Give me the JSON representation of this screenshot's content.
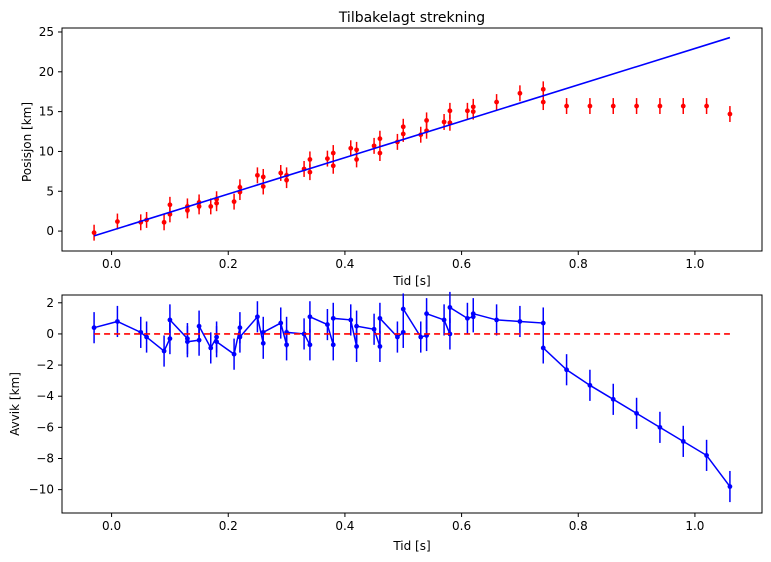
{
  "chart_data": [
    {
      "type": "scatter",
      "title": "Tilbakelagt strekning",
      "xlabel": "Tid [s]",
      "ylabel": "Posisjon [km]",
      "xlim": [
        -0.085,
        1.115
      ],
      "ylim": [
        -2.5,
        25.5
      ],
      "xticks": [
        0.0,
        0.2,
        0.4,
        0.6,
        0.8,
        1.0
      ],
      "xtick_labels": [
        "0.0",
        "0.2",
        "0.4",
        "0.6",
        "0.8",
        "1.0"
      ],
      "yticks": [
        0,
        5,
        10,
        15,
        20,
        25
      ],
      "ytick_labels": [
        "0",
        "5",
        "10",
        "15",
        "20",
        "25"
      ],
      "grid": false,
      "colors": {
        "points": "#ff0000",
        "fit": "#0000ff"
      },
      "series": [
        {
          "kind": "errorbar",
          "color": "#ff0000",
          "yerr": 1.0,
          "x": [
            -0.03,
            0.01,
            0.05,
            0.06,
            0.09,
            0.1,
            0.1,
            0.13,
            0.13,
            0.15,
            0.15,
            0.17,
            0.18,
            0.18,
            0.21,
            0.22,
            0.22,
            0.25,
            0.26,
            0.26,
            0.29,
            0.3,
            0.3,
            0.33,
            0.34,
            0.34,
            0.37,
            0.38,
            0.38,
            0.41,
            0.42,
            0.42,
            0.45,
            0.46,
            0.46,
            0.49,
            0.5,
            0.5,
            0.53,
            0.54,
            0.54,
            0.57,
            0.58,
            0.58,
            0.61,
            0.62,
            0.62,
            0.66,
            0.7,
            0.74,
            0.74,
            0.78,
            0.82,
            0.86,
            0.9,
            0.94,
            0.98,
            1.02,
            1.06
          ],
          "y": [
            -0.2,
            1.2,
            1.1,
            1.4,
            1.1,
            2.1,
            3.3,
            2.6,
            3.1,
            3.1,
            3.6,
            3.1,
            3.5,
            4.0,
            3.7,
            4.9,
            5.5,
            7.0,
            5.6,
            6.8,
            7.3,
            6.4,
            7.0,
            7.8,
            7.4,
            9.0,
            9.1,
            8.2,
            9.8,
            10.4,
            9.0,
            10.2,
            10.7,
            9.8,
            11.6,
            11.2,
            12.2,
            13.1,
            12.1,
            12.6,
            13.9,
            13.7,
            13.6,
            15.1,
            15.1,
            15.0,
            15.6,
            16.2,
            17.3,
            16.2,
            17.8,
            15.7,
            15.7,
            15.7,
            15.7,
            15.7,
            15.7,
            15.7,
            14.7
          ]
        },
        {
          "kind": "line",
          "color": "#0000ff",
          "x": [
            -0.03,
            1.06
          ],
          "y": [
            -0.6,
            24.3
          ]
        }
      ]
    },
    {
      "type": "line",
      "title": "",
      "xlabel": "Tid [s]",
      "ylabel": "Avvik [km]",
      "xlim": [
        -0.085,
        1.115
      ],
      "ylim": [
        -11.5,
        2.5
      ],
      "xticks": [
        0.0,
        0.2,
        0.4,
        0.6,
        0.8,
        1.0
      ],
      "xtick_labels": [
        "0.0",
        "0.2",
        "0.4",
        "0.6",
        "0.8",
        "1.0"
      ],
      "yticks": [
        2,
        0,
        -2,
        -4,
        -6,
        -8,
        -10
      ],
      "ytick_labels": [
        "2",
        "0",
        "−2",
        "−4",
        "−6",
        "−8",
        "−10"
      ],
      "grid": false,
      "colors": {
        "residuals": "#0000ff",
        "zero_line": "#ff0000"
      },
      "series": [
        {
          "kind": "errorbar-line",
          "color": "#0000ff",
          "yerr": 1.0,
          "x": [
            -0.03,
            0.01,
            0.05,
            0.06,
            0.09,
            0.1,
            0.1,
            0.13,
            0.13,
            0.15,
            0.15,
            0.17,
            0.18,
            0.18,
            0.21,
            0.22,
            0.22,
            0.25,
            0.26,
            0.26,
            0.29,
            0.3,
            0.3,
            0.33,
            0.34,
            0.34,
            0.37,
            0.38,
            0.38,
            0.41,
            0.42,
            0.42,
            0.45,
            0.46,
            0.46,
            0.49,
            0.5,
            0.5,
            0.53,
            0.54,
            0.54,
            0.57,
            0.58,
            0.58,
            0.61,
            0.62,
            0.62,
            0.66,
            0.7,
            0.74,
            0.74,
            0.78,
            0.82,
            0.86,
            0.9,
            0.94,
            0.98,
            1.02,
            1.06
          ],
          "y": [
            0.4,
            0.8,
            0.1,
            -0.2,
            -1.1,
            -0.3,
            0.9,
            -0.3,
            -0.5,
            -0.4,
            0.5,
            -0.9,
            -0.2,
            -0.5,
            -1.3,
            0.4,
            -0.2,
            1.1,
            -0.6,
            0.1,
            0.7,
            -0.7,
            0.1,
            0.0,
            -0.7,
            1.1,
            0.6,
            -0.7,
            1.0,
            0.9,
            -0.8,
            0.5,
            0.3,
            -0.8,
            1.0,
            -0.2,
            0.1,
            1.6,
            -0.2,
            -0.1,
            1.3,
            0.9,
            0.0,
            1.7,
            1.0,
            1.1,
            1.3,
            0.9,
            0.8,
            0.7,
            -0.9,
            -2.3,
            -3.3,
            -4.2,
            -5.1,
            -6.0,
            -6.9,
            -7.8,
            -9.8
          ]
        },
        {
          "kind": "dashed-line",
          "color": "#ff0000",
          "x": [
            -0.03,
            1.06
          ],
          "y": [
            0,
            0
          ]
        }
      ]
    }
  ]
}
